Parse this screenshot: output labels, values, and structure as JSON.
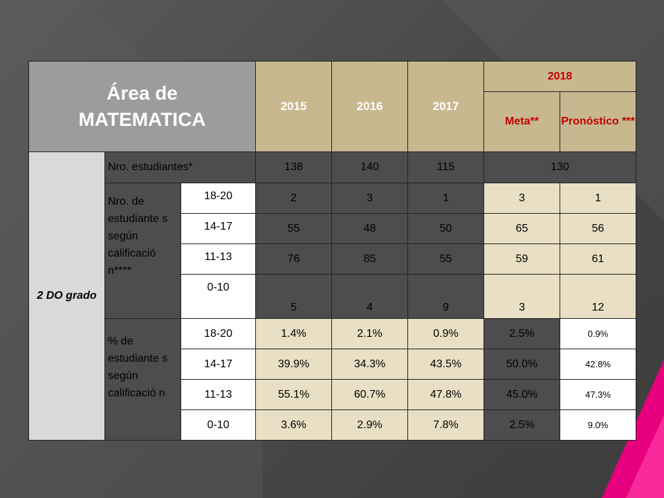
{
  "title_line1": "Área de",
  "title_line2": "MATEMATICA",
  "years": [
    "2015",
    "2016",
    "2017"
  ],
  "year_2018": "2018",
  "meta_label": "Meta**",
  "pronostico_label": "Pronóstico ***",
  "grade": "2 DO grado",
  "students_label": "Nro. estudiantes*",
  "students": [
    "138",
    "140",
    "115",
    "130"
  ],
  "count_label": "Nro. de estudiante s según calificació n****",
  "pct_label": "% de estudiante s según calificació n",
  "count_rows": [
    {
      "range": "18-20",
      "values": [
        "2",
        "3",
        "1",
        "3",
        "1"
      ]
    },
    {
      "range": "14-17",
      "values": [
        "55",
        "48",
        "50",
        "65",
        "56"
      ]
    },
    {
      "range": "11-13",
      "values": [
        "76",
        "85",
        "55",
        "59",
        "61"
      ]
    },
    {
      "range": "0-10",
      "values": [
        "5",
        "4",
        "9",
        "3",
        "12"
      ]
    }
  ],
  "pct_rows": [
    {
      "range": "18-20",
      "values": [
        "1.4%",
        "2.1%",
        "0.9%",
        "2.5%",
        "0.9%"
      ]
    },
    {
      "range": "14-17",
      "values": [
        "39.9%",
        "34.3%",
        "43.5%",
        "50.0%",
        "42.8%"
      ]
    },
    {
      "range": "11-13",
      "values": [
        "55.1%",
        "60.7%",
        "47.8%",
        "45.0%",
        "47.3%"
      ]
    },
    {
      "range": "0-10",
      "values": [
        "3.6%",
        "2.9%",
        "7.8%",
        "2.5%",
        "9.0%"
      ]
    }
  ],
  "colors": {
    "header_gold": "#c8b890",
    "red_text": "#c00000",
    "light_cell": "#e9dfc4",
    "dark_cell": "#4d4d4d",
    "accent_pink": "#e6007e"
  }
}
